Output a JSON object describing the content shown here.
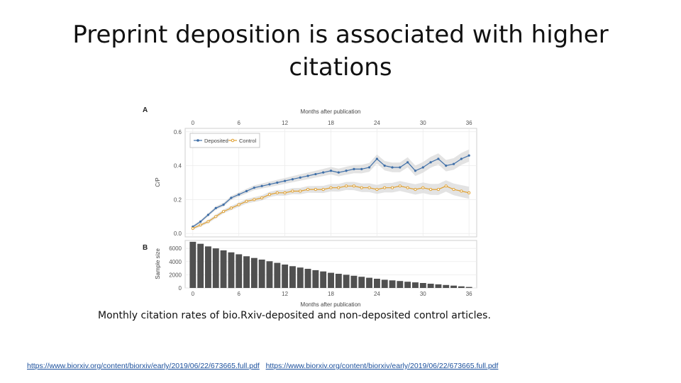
{
  "slide": {
    "title": "Preprint deposition is associated with higher citations",
    "caption": "Monthly citation rates of bio.Rxiv-deposited and non-deposited control articles.",
    "links": [
      "https://www.biorxiv.org/content/biorxiv/early/2019/06/22/673665.full.pdf",
      "https://www.biorxiv.org/content/biorxiv/early/2019/06/22/673665.full.pdf"
    ]
  },
  "chart_data": [
    {
      "panel": "A",
      "type": "line",
      "xlabel": "Months after publication",
      "ylabel": "C/P",
      "xlim": [
        -1,
        37
      ],
      "ylim": [
        -0.02,
        0.62
      ],
      "xticks": [
        0,
        6,
        12,
        18,
        24,
        30,
        36
      ],
      "yticks": [
        0.0,
        0.2,
        0.4,
        0.6
      ],
      "ytick_labels": [
        "0.0",
        "0.2",
        "0.4",
        "0.6"
      ],
      "grid": true,
      "legend_position": "top-left",
      "x": [
        0,
        1,
        2,
        3,
        4,
        5,
        6,
        7,
        8,
        9,
        10,
        11,
        12,
        13,
        14,
        15,
        16,
        17,
        18,
        19,
        20,
        21,
        22,
        23,
        24,
        25,
        26,
        27,
        28,
        29,
        30,
        31,
        32,
        33,
        34,
        35,
        36
      ],
      "series": [
        {
          "name": "Deposited",
          "color": "#3f6fa8",
          "values": [
            0.04,
            0.07,
            0.11,
            0.15,
            0.17,
            0.21,
            0.23,
            0.25,
            0.27,
            0.28,
            0.29,
            0.3,
            0.31,
            0.32,
            0.33,
            0.34,
            0.35,
            0.36,
            0.37,
            0.36,
            0.37,
            0.38,
            0.38,
            0.39,
            0.44,
            0.4,
            0.39,
            0.39,
            0.42,
            0.37,
            0.39,
            0.42,
            0.44,
            0.4,
            0.41,
            0.44,
            0.46
          ]
        },
        {
          "name": "Control",
          "color": "#e0a030",
          "values": [
            0.03,
            0.05,
            0.07,
            0.1,
            0.13,
            0.15,
            0.17,
            0.19,
            0.2,
            0.21,
            0.23,
            0.24,
            0.24,
            0.25,
            0.25,
            0.26,
            0.26,
            0.26,
            0.27,
            0.27,
            0.28,
            0.28,
            0.27,
            0.27,
            0.26,
            0.27,
            0.27,
            0.28,
            0.27,
            0.26,
            0.27,
            0.26,
            0.26,
            0.28,
            0.26,
            0.25,
            0.24
          ]
        }
      ]
    },
    {
      "panel": "B",
      "type": "bar",
      "xlabel": "Months after publication",
      "ylabel": "Sample size",
      "xlim": [
        -1,
        37
      ],
      "ylim": [
        0,
        7200
      ],
      "xticks": [
        0,
        6,
        12,
        18,
        24,
        30,
        36
      ],
      "yticks": [
        0,
        2000,
        4000,
        6000
      ],
      "grid": true,
      "bar_color": "#505050",
      "x": [
        0,
        1,
        2,
        3,
        4,
        5,
        6,
        7,
        8,
        9,
        10,
        11,
        12,
        13,
        14,
        15,
        16,
        17,
        18,
        19,
        20,
        21,
        22,
        23,
        24,
        25,
        26,
        27,
        28,
        29,
        30,
        31,
        32,
        33,
        34,
        35,
        36
      ],
      "values": [
        7000,
        6700,
        6300,
        6000,
        5700,
        5400,
        5100,
        4800,
        4550,
        4300,
        4050,
        3800,
        3550,
        3300,
        3100,
        2900,
        2700,
        2500,
        2300,
        2150,
        2000,
        1850,
        1700,
        1550,
        1400,
        1250,
        1150,
        1050,
        950,
        850,
        750,
        650,
        550,
        450,
        350,
        250,
        150
      ]
    }
  ]
}
